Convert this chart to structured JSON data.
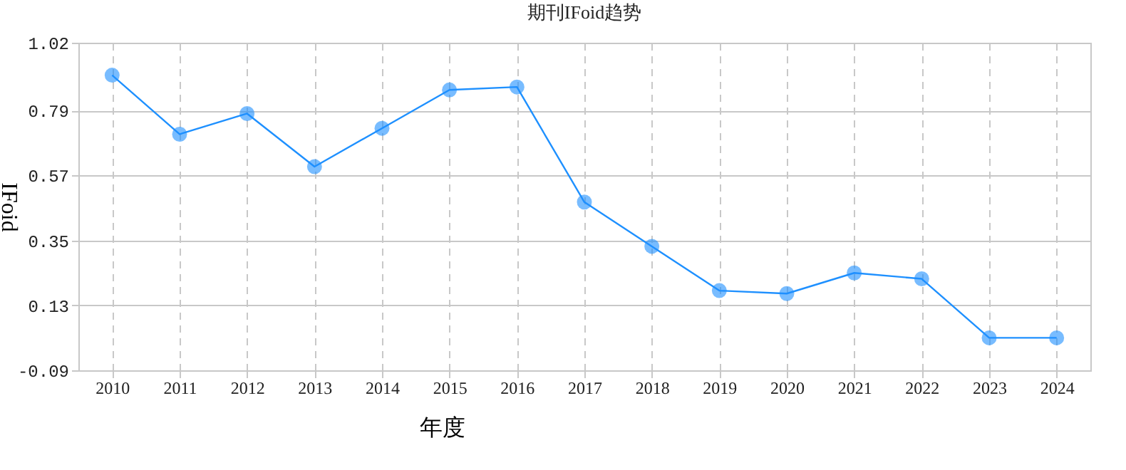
{
  "chart_data": {
    "type": "line",
    "title": "期刊IFoid趋势",
    "xlabel": "年度",
    "ylabel": "IFoid",
    "categories": [
      "2010",
      "2011",
      "2012",
      "2013",
      "2014",
      "2015",
      "2016",
      "2017",
      "2018",
      "2019",
      "2020",
      "2021",
      "2022",
      "2023",
      "2024"
    ],
    "series": [
      {
        "color": "#1e90ff",
        "values": [
          0.91,
          0.71,
          0.78,
          0.6,
          0.73,
          0.86,
          0.87,
          0.48,
          0.33,
          0.18,
          0.17,
          0.24,
          0.22,
          0.02,
          0.02
        ]
      }
    ],
    "ylim": [
      -0.09,
      1.02
    ],
    "yticks": [
      -0.09,
      0.13,
      0.35,
      0.57,
      0.79,
      1.02
    ],
    "grid": true,
    "marker": "circle",
    "line_style": "solid"
  }
}
